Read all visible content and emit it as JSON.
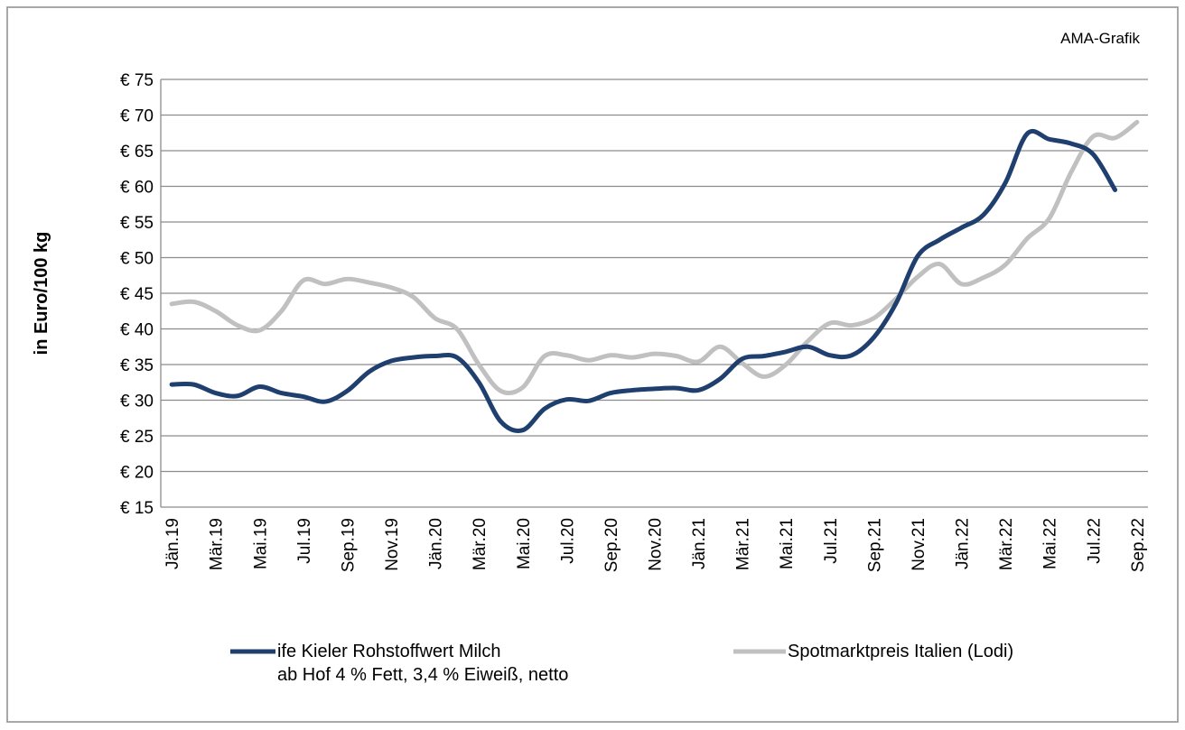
{
  "chart_data": {
    "type": "line",
    "annotation": "AMA-Grafik",
    "y_label": "in Euro/100 kg",
    "categories": [
      "Jän.19",
      null,
      "Mär.19",
      null,
      "Mai.19",
      null,
      "Jul.19",
      null,
      "Sep.19",
      null,
      "Nov.19",
      null,
      "Jän.20",
      null,
      "Mär.20",
      null,
      "Mai.20",
      null,
      "Jul.20",
      null,
      "Sep.20",
      null,
      "Nov.20",
      null,
      "Jän.21",
      null,
      "Mär.21",
      null,
      "Mai.21",
      null,
      "Jul.21",
      null,
      "Sep.21",
      null,
      "Nov.21",
      null,
      "Jän.22",
      null,
      "Mär.22",
      null,
      "Mai.22",
      null,
      "Jul.22",
      null,
      "Sep.22"
    ],
    "series": [
      {
        "name": "ife Kieler Rohstoffwert Milch\nab Hof 4 % Fett, 3,4 % Eiweiß, netto",
        "color": "#1f3f6e",
        "values": [
          32.2,
          32.2,
          31.0,
          30.6,
          31.9,
          31.0,
          30.5,
          29.8,
          31.3,
          34.0,
          35.5,
          36.0,
          36.2,
          36.0,
          32.5,
          27.0,
          25.8,
          28.8,
          30.1,
          29.9,
          31.0,
          31.4,
          31.6,
          31.7,
          31.4,
          33.0,
          35.8,
          36.2,
          36.8,
          37.5,
          36.3,
          36.3,
          38.8,
          43.5,
          50.2,
          52.5,
          54.2,
          56.0,
          60.5,
          67.4,
          66.6,
          66.0,
          64.5,
          59.5,
          null
        ]
      },
      {
        "name": "Spotmarktpreis Italien (Lodi)",
        "color": "#c0c0c0",
        "values": [
          43.5,
          43.8,
          42.5,
          40.5,
          39.8,
          42.5,
          46.8,
          46.3,
          47.0,
          46.5,
          45.8,
          44.5,
          41.5,
          40.0,
          35.0,
          31.3,
          31.8,
          36.2,
          36.3,
          35.6,
          36.3,
          36.0,
          36.5,
          36.2,
          35.4,
          37.5,
          35.2,
          33.3,
          35.0,
          38.3,
          40.8,
          40.5,
          41.5,
          44.2,
          47.3,
          49.1,
          46.3,
          47.2,
          49.0,
          52.7,
          55.5,
          62.0,
          67.0,
          66.8,
          69.0
        ]
      }
    ],
    "ylim": [
      15,
      75
    ],
    "yticks": [
      {
        "value": 15,
        "label": "€ 15"
      },
      {
        "value": 20,
        "label": "€ 20"
      },
      {
        "value": 25,
        "label": "€ 25"
      },
      {
        "value": 30,
        "label": "€ 30"
      },
      {
        "value": 35,
        "label": "€ 35"
      },
      {
        "value": 40,
        "label": "€ 40"
      },
      {
        "value": 45,
        "label": "€ 45"
      },
      {
        "value": 50,
        "label": "€ 50"
      },
      {
        "value": 55,
        "label": "€ 55"
      },
      {
        "value": 60,
        "label": "€ 60"
      },
      {
        "value": 65,
        "label": "€ 65"
      },
      {
        "value": 70,
        "label": "€ 70"
      },
      {
        "value": 75,
        "label": "€ 75"
      }
    ],
    "grid": true
  }
}
